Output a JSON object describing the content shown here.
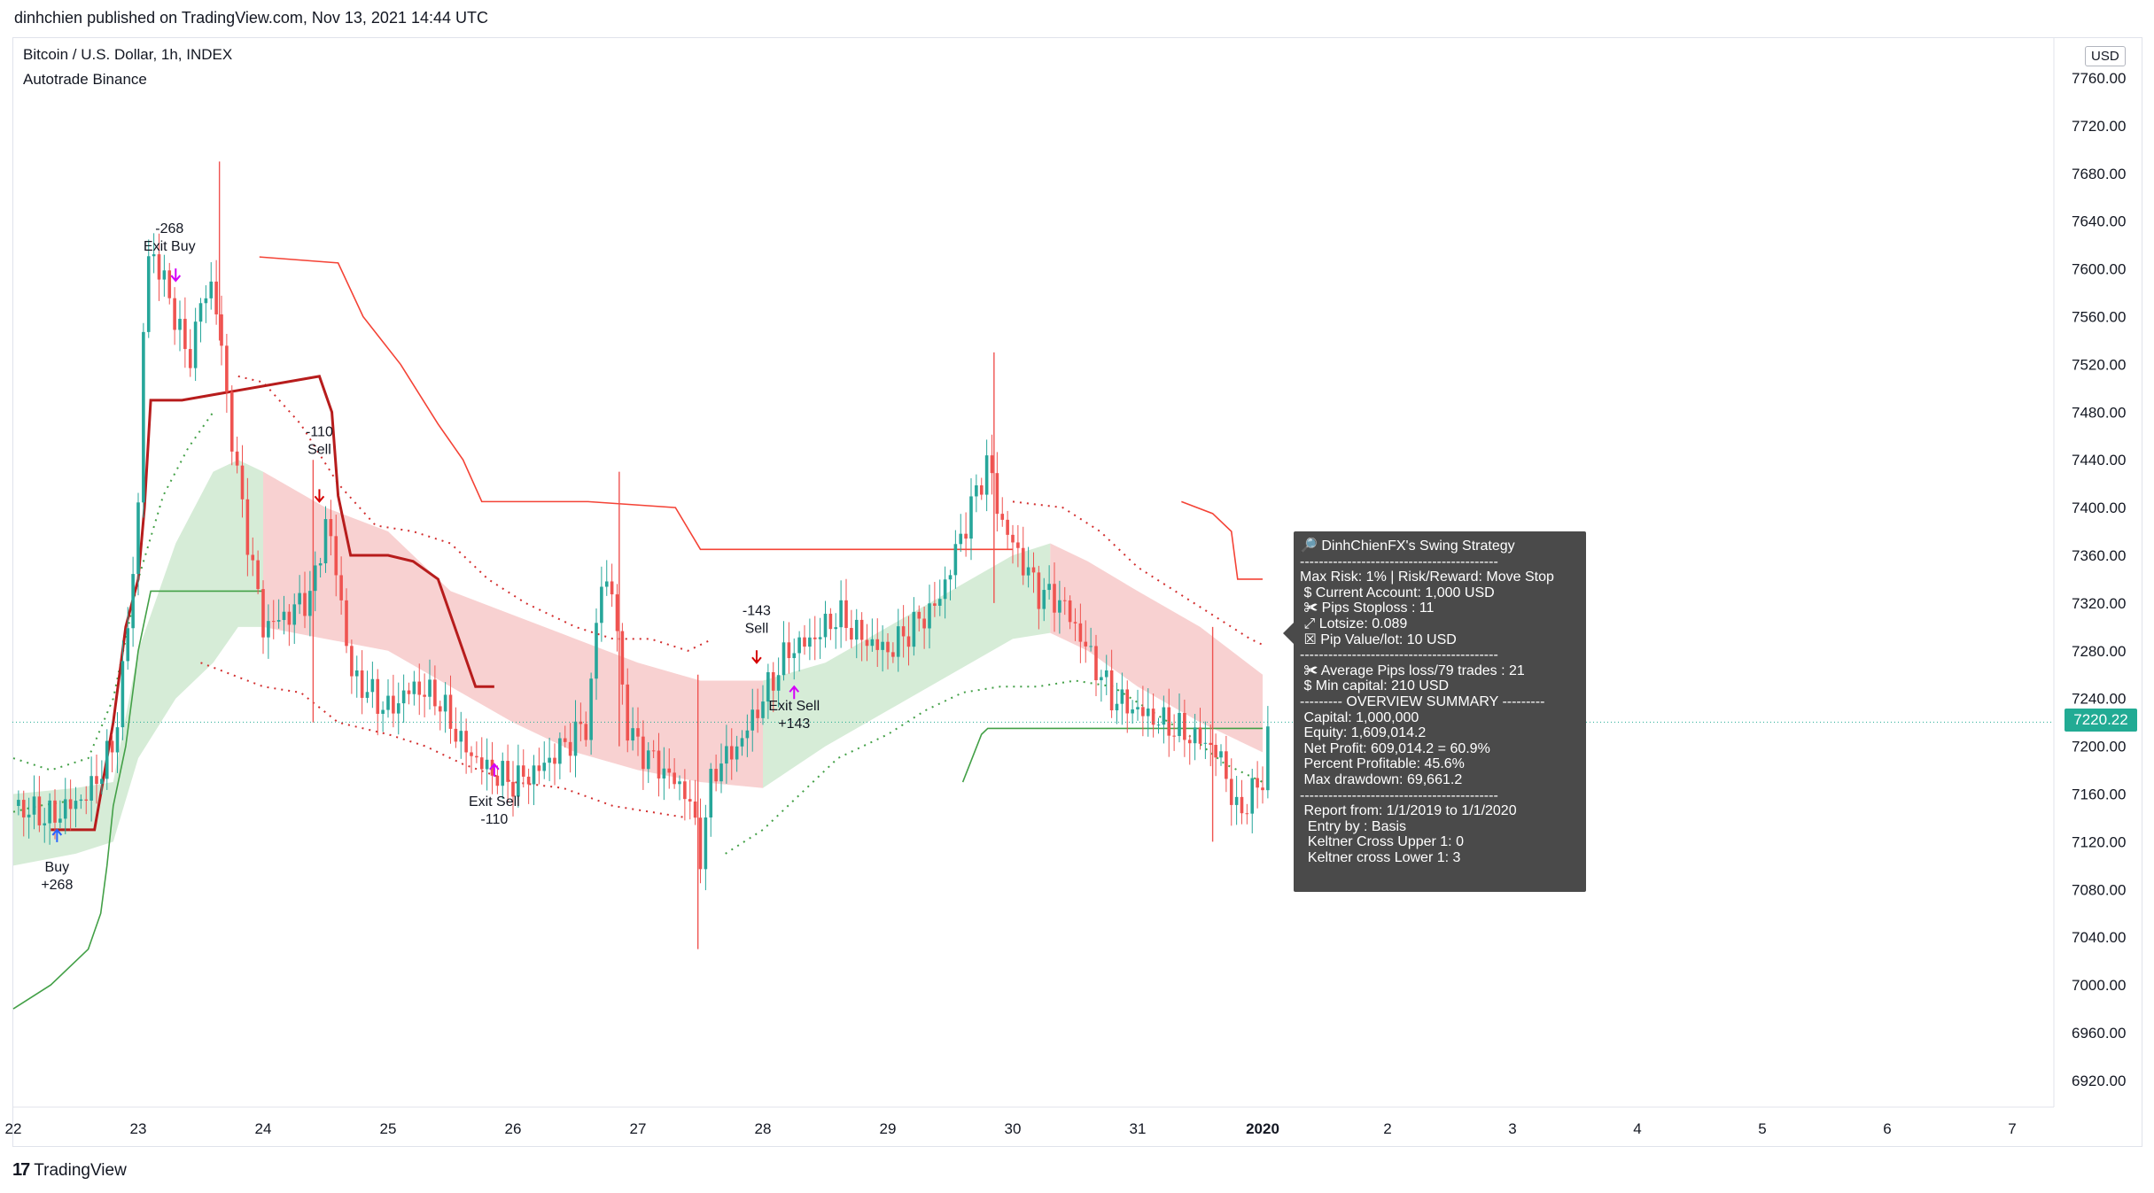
{
  "header": {
    "published": "dinhchien published on TradingView.com, Nov 13, 2021 14:44 UTC",
    "symbol": "Bitcoin / U.S. Dollar, 1h, INDEX",
    "indicator": "Autotrade Binance",
    "currency": "USD"
  },
  "footer": {
    "brand": "TradingView",
    "logo_mark": "17"
  },
  "colors": {
    "up": "#26a69a",
    "down": "#ef5350",
    "green_fill": "#c8e6c9",
    "red_fill": "#f6c5c5",
    "trail_red": "#b71c1c",
    "marker_magenta": "#d500f9",
    "marker_blue": "#2962ff",
    "price_tag": "#22ab94"
  },
  "chart_data": {
    "type": "candlestick",
    "title": "Bitcoin / U.S. Dollar, 1h, INDEX",
    "ylim": [
      6880,
      7780
    ],
    "y_ticks": [
      "7760.00",
      "7720.00",
      "7680.00",
      "7640.00",
      "7600.00",
      "7560.00",
      "7520.00",
      "7480.00",
      "7440.00",
      "7400.00",
      "7360.00",
      "7320.00",
      "7280.00",
      "7240.00",
      "7200.00",
      "7160.00",
      "7120.00",
      "7080.00",
      "7040.00",
      "7000.00",
      "6960.00",
      "6920.00"
    ],
    "x_ticks": [
      "22",
      "23",
      "24",
      "25",
      "26",
      "27",
      "28",
      "29",
      "30",
      "31",
      "2020",
      "2",
      "3",
      "4",
      "5",
      "6",
      "7"
    ],
    "last_price": "7220.22",
    "anchors": [
      [
        22.0,
        7150
      ],
      [
        22.3,
        7140
      ],
      [
        22.6,
        7160
      ],
      [
        22.8,
        7200
      ],
      [
        22.9,
        7280
      ],
      [
        23.0,
        7400
      ],
      [
        23.05,
        7580
      ],
      [
        23.1,
        7620
      ],
      [
        23.3,
        7560
      ],
      [
        23.4,
        7520
      ],
      [
        23.5,
        7570
      ],
      [
        23.6,
        7590
      ],
      [
        23.7,
        7500
      ],
      [
        23.8,
        7420
      ],
      [
        23.9,
        7360
      ],
      [
        24.0,
        7300
      ],
      [
        24.2,
        7310
      ],
      [
        24.4,
        7330
      ],
      [
        24.5,
        7390
      ],
      [
        24.6,
        7340
      ],
      [
        24.7,
        7260
      ],
      [
        24.8,
        7250
      ],
      [
        25.0,
        7230
      ],
      [
        25.2,
        7250
      ],
      [
        25.4,
        7240
      ],
      [
        25.6,
        7200
      ],
      [
        25.8,
        7180
      ],
      [
        26.0,
        7170
      ],
      [
        26.2,
        7180
      ],
      [
        26.4,
        7200
      ],
      [
        26.6,
        7220
      ],
      [
        26.7,
        7340
      ],
      [
        26.8,
        7330
      ],
      [
        26.9,
        7220
      ],
      [
        27.0,
        7200
      ],
      [
        27.2,
        7180
      ],
      [
        27.4,
        7160
      ],
      [
        27.5,
        7110
      ],
      [
        27.6,
        7180
      ],
      [
        27.8,
        7200
      ],
      [
        28.0,
        7240
      ],
      [
        28.2,
        7280
      ],
      [
        28.4,
        7290
      ],
      [
        28.6,
        7310
      ],
      [
        28.8,
        7290
      ],
      [
        29.0,
        7280
      ],
      [
        29.2,
        7300
      ],
      [
        29.4,
        7320
      ],
      [
        29.6,
        7380
      ],
      [
        29.8,
        7440
      ],
      [
        29.9,
        7390
      ],
      [
        30.0,
        7370
      ],
      [
        30.2,
        7330
      ],
      [
        30.4,
        7320
      ],
      [
        30.6,
        7280
      ],
      [
        30.8,
        7240
      ],
      [
        31.0,
        7230
      ],
      [
        31.2,
        7220
      ],
      [
        31.4,
        7210
      ],
      [
        31.6,
        7200
      ],
      [
        31.7,
        7180
      ],
      [
        31.8,
        7140
      ],
      [
        31.9,
        7160
      ],
      [
        32.0,
        7170
      ],
      [
        32.05,
        7220
      ]
    ],
    "wicks": [
      [
        23.65,
        7690,
        7540
      ],
      [
        24.4,
        7440,
        7220
      ],
      [
        26.85,
        7430,
        7200
      ],
      [
        27.48,
        7260,
        7030
      ],
      [
        29.85,
        7530,
        7320
      ],
      [
        31.6,
        7300,
        7120
      ]
    ],
    "trailing_upper_solid": [
      [
        23.97,
        7610
      ],
      [
        24.6,
        7605
      ],
      [
        24.8,
        7560
      ],
      [
        25.1,
        7520
      ],
      [
        25.4,
        7470
      ],
      [
        25.6,
        7440
      ],
      [
        25.75,
        7405
      ],
      [
        26.0,
        7405
      ],
      [
        26.6,
        7405
      ],
      [
        27.3,
        7400
      ],
      [
        27.5,
        7365
      ],
      [
        29.6,
        7365
      ],
      [
        30.0,
        7365
      ]
    ],
    "trailing_upper_solid_2": [
      [
        31.35,
        7405
      ],
      [
        31.6,
        7395
      ],
      [
        31.75,
        7380
      ],
      [
        31.8,
        7340
      ],
      [
        32.0,
        7340
      ]
    ],
    "trailing_lower_solid": [
      [
        22.0,
        6980
      ],
      [
        22.3,
        7000
      ],
      [
        22.6,
        7030
      ],
      [
        22.7,
        7060
      ],
      [
        22.75,
        7100
      ],
      [
        22.8,
        7150
      ],
      [
        22.9,
        7200
      ],
      [
        23.0,
        7280
      ],
      [
        23.1,
        7330
      ],
      [
        23.5,
        7330
      ],
      [
        24.0,
        7330
      ]
    ],
    "trailing_lower_solid_2": [
      [
        29.6,
        7170
      ],
      [
        29.75,
        7210
      ],
      [
        29.8,
        7215
      ],
      [
        30.4,
        7215
      ],
      [
        31.6,
        7215
      ],
      [
        32.0,
        7215
      ]
    ],
    "trail_red_stop": [
      [
        22.3,
        7130
      ],
      [
        22.65,
        7130
      ],
      [
        22.8,
        7220
      ],
      [
        22.9,
        7300
      ],
      [
        23.0,
        7340
      ],
      [
        23.05,
        7400
      ],
      [
        23.1,
        7490
      ],
      [
        23.35,
        7490
      ],
      [
        24.45,
        7510
      ],
      [
        24.55,
        7480
      ],
      [
        24.6,
        7410
      ],
      [
        24.7,
        7360
      ],
      [
        25.0,
        7360
      ],
      [
        25.2,
        7355
      ],
      [
        25.4,
        7340
      ],
      [
        25.5,
        7310
      ],
      [
        25.6,
        7280
      ],
      [
        25.7,
        7250
      ],
      [
        25.85,
        7250
      ]
    ],
    "keltner_upper_dotted": [
      [
        23.8,
        7510
      ],
      [
        24.0,
        7505
      ],
      [
        24.3,
        7470
      ],
      [
        24.6,
        7420
      ],
      [
        24.9,
        7385
      ],
      [
        25.2,
        7380
      ],
      [
        25.5,
        7370
      ],
      [
        25.8,
        7340
      ],
      [
        26.1,
        7320
      ],
      [
        26.5,
        7300
      ],
      [
        26.8,
        7290
      ],
      [
        27.1,
        7290
      ],
      [
        27.4,
        7280
      ],
      [
        27.6,
        7290
      ]
    ],
    "keltner_upper_dotted_2": [
      [
        30.0,
        7405
      ],
      [
        30.4,
        7400
      ],
      [
        30.7,
        7380
      ],
      [
        31.0,
        7350
      ],
      [
        31.3,
        7330
      ],
      [
        31.6,
        7310
      ],
      [
        31.9,
        7290
      ],
      [
        32.0,
        7285
      ]
    ],
    "keltner_lower_dotted": [
      [
        22.0,
        7190
      ],
      [
        22.3,
        7180
      ],
      [
        22.6,
        7190
      ],
      [
        22.8,
        7240
      ],
      [
        23.0,
        7340
      ],
      [
        23.2,
        7410
      ],
      [
        23.4,
        7450
      ],
      [
        23.6,
        7480
      ]
    ],
    "keltner_lower_dotted_2": [
      [
        27.7,
        7110
      ],
      [
        28.0,
        7130
      ],
      [
        28.3,
        7160
      ],
      [
        28.6,
        7190
      ],
      [
        29.0,
        7210
      ],
      [
        29.3,
        7230
      ],
      [
        29.6,
        7245
      ],
      [
        29.9,
        7250
      ],
      [
        30.2,
        7250
      ],
      [
        30.5,
        7255
      ],
      [
        30.8,
        7250
      ],
      [
        31.1,
        7230
      ],
      [
        31.4,
        7210
      ],
      [
        31.7,
        7185
      ],
      [
        32.0,
        7170
      ]
    ],
    "keltner_lower_dotted_3": [
      [
        23.5,
        7270
      ],
      [
        24.0,
        7250
      ],
      [
        24.3,
        7245
      ],
      [
        24.6,
        7220
      ],
      [
        25.0,
        7210
      ],
      [
        25.3,
        7200
      ],
      [
        25.6,
        7185
      ],
      [
        26.0,
        7170
      ],
      [
        26.4,
        7165
      ],
      [
        26.8,
        7150
      ],
      [
        27.1,
        7145
      ],
      [
        27.4,
        7140
      ]
    ],
    "keltner_upper_dotted_3": [
      [
        22.0,
        7145
      ],
      [
        22.2,
        7150
      ],
      [
        22.5,
        7155
      ]
    ],
    "band_green": {
      "upper": [
        [
          22.0,
          7160
        ],
        [
          22.5,
          7165
        ],
        [
          22.8,
          7170
        ],
        [
          23.0,
          7280
        ],
        [
          23.3,
          7370
        ],
        [
          23.6,
          7430
        ],
        [
          23.8,
          7440
        ],
        [
          24.0,
          7430
        ]
      ],
      "lower": [
        [
          22.0,
          7100
        ],
        [
          22.5,
          7110
        ],
        [
          22.8,
          7120
        ],
        [
          23.0,
          7190
        ],
        [
          23.3,
          7240
        ],
        [
          23.6,
          7270
        ],
        [
          23.8,
          7300
        ],
        [
          24.0,
          7300
        ]
      ]
    },
    "band_red": {
      "upper": [
        [
          24.0,
          7430
        ],
        [
          24.5,
          7400
        ],
        [
          25.0,
          7380
        ],
        [
          25.5,
          7330
        ],
        [
          26.0,
          7310
        ],
        [
          26.5,
          7290
        ],
        [
          27.0,
          7270
        ],
        [
          27.5,
          7255
        ],
        [
          28.0,
          7255
        ]
      ],
      "lower": [
        [
          24.0,
          7300
        ],
        [
          24.5,
          7290
        ],
        [
          25.0,
          7280
        ],
        [
          25.5,
          7250
        ],
        [
          26.0,
          7220
        ],
        [
          26.5,
          7195
        ],
        [
          27.0,
          7180
        ],
        [
          27.5,
          7170
        ],
        [
          28.0,
          7165
        ]
      ]
    },
    "band_green_2": {
      "upper": [
        [
          28.0,
          7255
        ],
        [
          28.5,
          7270
        ],
        [
          29.0,
          7300
        ],
        [
          29.5,
          7330
        ],
        [
          30.0,
          7360
        ],
        [
          30.3,
          7370
        ]
      ],
      "lower": [
        [
          28.0,
          7165
        ],
        [
          28.5,
          7200
        ],
        [
          29.0,
          7230
        ],
        [
          29.5,
          7260
        ],
        [
          30.0,
          7290
        ],
        [
          30.3,
          7295
        ]
      ]
    },
    "band_red_2": {
      "upper": [
        [
          30.3,
          7370
        ],
        [
          30.6,
          7355
        ],
        [
          31.0,
          7330
        ],
        [
          31.5,
          7300
        ],
        [
          32.0,
          7260
        ]
      ],
      "lower": [
        [
          30.3,
          7295
        ],
        [
          30.6,
          7280
        ],
        [
          31.0,
          7250
        ],
        [
          31.5,
          7220
        ],
        [
          32.0,
          7195
        ]
      ]
    },
    "annotations": [
      {
        "text": "-268\nExit Buy",
        "x": 23.25,
        "y": 7630
      },
      {
        "text": "Buy\n+268",
        "x": 22.35,
        "y": 7095
      },
      {
        "text": "-110\nSell",
        "x": 24.45,
        "y": 7460
      },
      {
        "text": "Exit Sell\n-110",
        "x": 25.85,
        "y": 7150
      },
      {
        "text": "-143\nSell",
        "x": 27.95,
        "y": 7310
      },
      {
        "text": "Exit Sell\n+143",
        "x": 28.25,
        "y": 7230
      }
    ],
    "markers": [
      {
        "kind": "arrow-down",
        "x": 23.3,
        "y": 7590,
        "color": "#d500f9"
      },
      {
        "kind": "arrow-up",
        "x": 22.35,
        "y": 7130,
        "color": "#2962ff"
      },
      {
        "kind": "arrow-down",
        "x": 24.45,
        "y": 7405,
        "color": "#d50000"
      },
      {
        "kind": "arrow-up",
        "x": 25.85,
        "y": 7185,
        "color": "#d500f9"
      },
      {
        "kind": "arrow-down",
        "x": 27.95,
        "y": 7270,
        "color": "#d50000"
      },
      {
        "kind": "arrow-up",
        "x": 28.25,
        "y": 7250,
        "color": "#d500f9"
      }
    ]
  },
  "tooltip": {
    "lines": [
      "🔎 DinhChienFX's Swing Strategy",
      "------------------------------------------",
      "Max Risk: 1% | Risk/Reward: Move Stop",
      " $ Current Account: 1,000 USD",
      " ✀ Pips Stoploss : 11",
      " ⤢ Lotsize: 0.089",
      " ☒ Pip Value/lot: 10 USD",
      "------------------------------------------",
      " ✀ Average Pips loss/79 trades : 21",
      " $ Min capital: 210 USD",
      "--------- OVERVIEW SUMMARY ---------",
      " Capital: 1,000,000",
      " Equity: 1,609,014.2",
      " Net Profit: 609,014.2 = 60.9%",
      " Percent Profitable: 45.6%",
      " Max drawdown: 69,661.2",
      "------------------------------------------",
      " Report from: 1/1/2019 to 1/1/2020",
      "  Entry by : Basis",
      "  Keltner Cross Upper 1: 0",
      "  Keltner cross Lower 1: 3"
    ]
  }
}
